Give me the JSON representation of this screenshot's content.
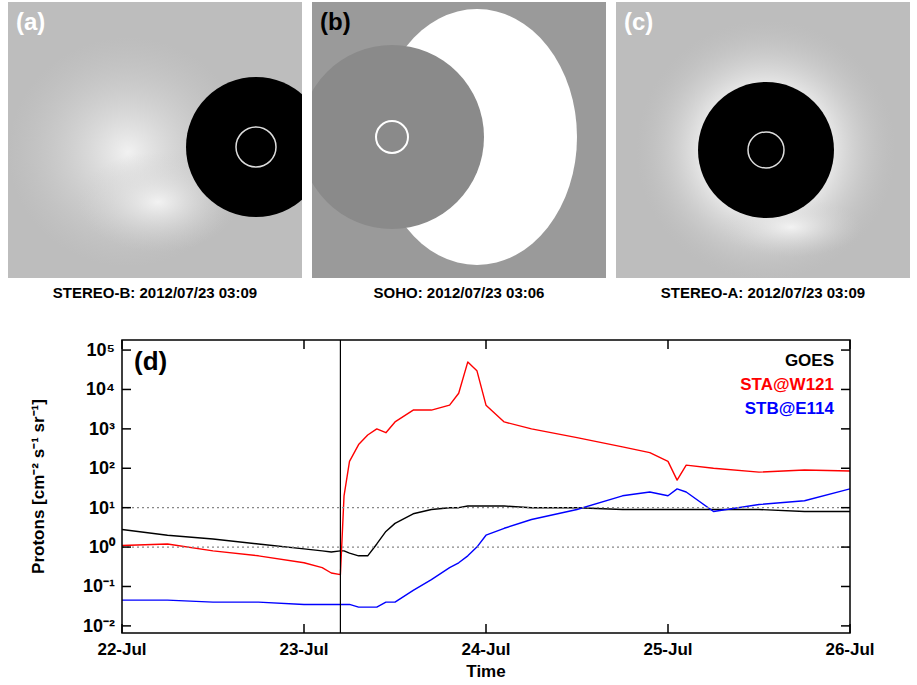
{
  "chart_data": {
    "type": "line",
    "title": "(d)",
    "x_label": "Time",
    "y_label": "Protons [cm⁻² s⁻¹ sr⁻¹]",
    "log": "y",
    "legend": "upper right",
    "xlim": [
      0,
      4
    ],
    "xticks": [
      {
        "value": 0,
        "label": "22-Jul"
      },
      {
        "value": 1,
        "label": "23-Jul"
      },
      {
        "value": 2,
        "label": "24-Jul"
      },
      {
        "value": 3,
        "label": "25-Jul"
      },
      {
        "value": 4,
        "label": "26-Jul"
      }
    ],
    "ylim": [
      0.0066,
      180000
    ],
    "yticks": [
      {
        "value": 0.01,
        "label": "10⁻²"
      },
      {
        "value": 0.1,
        "label": "10⁻¹"
      },
      {
        "value": 1,
        "label": "10⁰"
      },
      {
        "value": 10,
        "label": "10¹"
      },
      {
        "value": 100,
        "label": "10²"
      },
      {
        "value": 1000,
        "label": "10³"
      },
      {
        "value": 10000,
        "label": "10⁴"
      },
      {
        "value": 100000,
        "label": "10⁵"
      }
    ],
    "reference_lines": {
      "x": [
        1.2
      ],
      "y": [
        1,
        10
      ]
    },
    "x": [
      0,
      0.25,
      0.5,
      0.75,
      1.0,
      1.1,
      1.15,
      1.2,
      1.22,
      1.25,
      1.3,
      1.35,
      1.4,
      1.45,
      1.5,
      1.6,
      1.7,
      1.8,
      1.85,
      1.9,
      1.95,
      2.0,
      2.1,
      2.25,
      2.5,
      2.75,
      2.9,
      3.0,
      3.05,
      3.1,
      3.25,
      3.5,
      3.75,
      4.0
    ],
    "series": [
      {
        "name": "GOES",
        "color": "#000000",
        "values": [
          2.8,
          2.0,
          1.6,
          1.2,
          0.9,
          0.8,
          0.75,
          0.8,
          0.8,
          0.7,
          0.6,
          0.6,
          1.2,
          2.5,
          4,
          7,
          9,
          10,
          10,
          11,
          11,
          11,
          11,
          10,
          10,
          9,
          9,
          9,
          9,
          9,
          9,
          9,
          8,
          8
        ]
      },
      {
        "name": "STA@W121",
        "color": "#ff0000",
        "values": [
          1.1,
          1.2,
          0.8,
          0.6,
          0.4,
          0.3,
          0.22,
          0.2,
          20,
          150,
          400,
          700,
          1000,
          800,
          1500,
          3000,
          3000,
          4000,
          8000,
          50000,
          30000,
          4000,
          1500,
          1000,
          600,
          350,
          250,
          150,
          50,
          120,
          100,
          80,
          90,
          85
        ]
      },
      {
        "name": "STB@E114",
        "color": "#0000ff",
        "values": [
          0.045,
          0.045,
          0.04,
          0.04,
          0.035,
          0.035,
          0.035,
          0.035,
          0.035,
          0.035,
          0.03,
          0.03,
          0.03,
          0.04,
          0.04,
          0.08,
          0.15,
          0.3,
          0.4,
          0.6,
          1.0,
          2,
          3,
          5,
          9,
          20,
          25,
          20,
          30,
          25,
          8,
          12,
          15,
          30
        ]
      }
    ]
  },
  "images": [
    {
      "label": "(a)",
      "caption": "STEREO-B: 2012/07/23 03:09"
    },
    {
      "label": "(b)",
      "caption": "SOHO: 2012/07/23 03:06"
    },
    {
      "label": "(c)",
      "caption": "STEREO-A: 2012/07/23 03:09"
    }
  ]
}
